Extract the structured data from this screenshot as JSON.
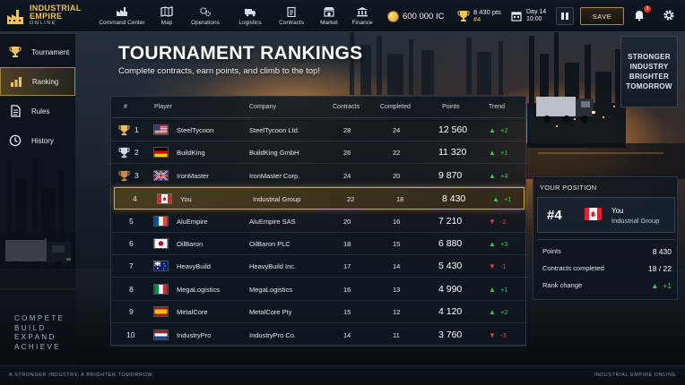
{
  "brand": {
    "line1": "INDUSTRIAL",
    "line2": "EMPIRE",
    "line3": "ONLINE"
  },
  "nav": [
    {
      "label": "Command Center",
      "icon": "factory-icon"
    },
    {
      "label": "Map",
      "icon": "map-icon"
    },
    {
      "label": "Operations",
      "icon": "gears-icon"
    },
    {
      "label": "Logistics",
      "icon": "truck-icon"
    },
    {
      "label": "Contracts",
      "icon": "clipboard-icon"
    },
    {
      "label": "Market",
      "icon": "market-icon"
    },
    {
      "label": "Finance",
      "icon": "finance-icon"
    }
  ],
  "resources": {
    "money": "600 000 IC",
    "points": "8 430 pts",
    "rank": "#4",
    "day": "Day 14",
    "time": "10:00"
  },
  "controls": {
    "save_label": "SAVE",
    "notifications": "3"
  },
  "sidebar": {
    "items": [
      {
        "label": "Tournament",
        "icon": "trophy-icon"
      },
      {
        "label": "Ranking",
        "icon": "bar-chart-icon"
      },
      {
        "label": "Rules",
        "icon": "document-icon"
      },
      {
        "label": "History",
        "icon": "clock-icon"
      }
    ],
    "slogan": [
      "COMPETE",
      "BUILD",
      "EXPAND",
      "ACHIEVE"
    ]
  },
  "page": {
    "title": "TOURNAMENT RANKINGS",
    "subtitle": "Complete contracts, earn points, and climb to the top!"
  },
  "billboard": [
    "STRONGER",
    "INDUSTRY",
    "BRIGHTER",
    "TOMORROW"
  ],
  "table": {
    "headers": {
      "rank": "#",
      "player": "Player",
      "company": "Company",
      "contracts": "Contracts",
      "completed": "Completed",
      "points": "Points",
      "trend": "Trend"
    },
    "rows": [
      {
        "rank": "1",
        "player": "SteelTycoon",
        "company": "SteelTycoon Ltd.",
        "contracts": "28",
        "completed": "24",
        "points": "12 560",
        "trend": "+2",
        "dir": "up",
        "flag": "us",
        "trophy": "gold"
      },
      {
        "rank": "2",
        "player": "BuildKing",
        "company": "BuildKing GmbH",
        "contracts": "26",
        "completed": "22",
        "points": "11 320",
        "trend": "+1",
        "dir": "up",
        "flag": "de",
        "trophy": "silver"
      },
      {
        "rank": "3",
        "player": "IronMaster",
        "company": "IronMaster Corp.",
        "contracts": "24",
        "completed": "20",
        "points": "9 870",
        "trend": "+4",
        "dir": "up",
        "flag": "gb",
        "trophy": "bronze"
      },
      {
        "rank": "4",
        "player": "You",
        "company": "Industrial Group",
        "contracts": "22",
        "completed": "18",
        "points": "8 430",
        "trend": "+1",
        "dir": "up",
        "flag": "ca",
        "trophy": ""
      },
      {
        "rank": "5",
        "player": "AluEmpire",
        "company": "AluEmpire SAS",
        "contracts": "20",
        "completed": "16",
        "points": "7 210",
        "trend": "-2",
        "dir": "down",
        "flag": "fr",
        "trophy": ""
      },
      {
        "rank": "6",
        "player": "OilBaron",
        "company": "OilBaron PLC",
        "contracts": "18",
        "completed": "15",
        "points": "6 880",
        "trend": "+3",
        "dir": "up",
        "flag": "jp",
        "trophy": ""
      },
      {
        "rank": "7",
        "player": "HeavyBuild",
        "company": "HeavyBuild Inc.",
        "contracts": "17",
        "completed": "14",
        "points": "5 430",
        "trend": "-1",
        "dir": "down",
        "flag": "au",
        "trophy": ""
      },
      {
        "rank": "8",
        "player": "MegaLogistics",
        "company": "MegaLogistics",
        "contracts": "16",
        "completed": "13",
        "points": "4 990",
        "trend": "+1",
        "dir": "up",
        "flag": "it",
        "trophy": ""
      },
      {
        "rank": "9",
        "player": "MetalCore",
        "company": "MetalCore Pty",
        "contracts": "15",
        "completed": "12",
        "points": "4 120",
        "trend": "+2",
        "dir": "up",
        "flag": "es",
        "trophy": ""
      },
      {
        "rank": "10",
        "player": "IndustryPro",
        "company": "IndustryPro Co.",
        "contracts": "14",
        "completed": "11",
        "points": "3 760",
        "trend": "-3",
        "dir": "down",
        "flag": "nl",
        "trophy": ""
      }
    ]
  },
  "position": {
    "title": "YOUR POSITION",
    "rank": "#4",
    "name": "You",
    "company": "Industrial Group",
    "points_label": "Points",
    "points": "8 430",
    "contracts_label": "Contracts completed",
    "contracts": "18 / 22",
    "change_label": "Rank change",
    "change": "+1"
  },
  "footer": {
    "left": "A STRONGER INDUSTRY. A BRIGHTER TOMORROW.",
    "right": "INDUSTRIAL EMPIRE ONLINE"
  },
  "colors": {
    "gold": "#f0c35a",
    "up": "#3cc85a",
    "down": "#e0463c",
    "highlight": "#d9a545"
  }
}
